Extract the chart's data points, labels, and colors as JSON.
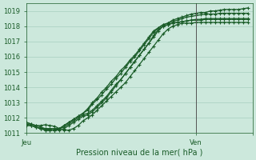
{
  "title": "",
  "xlabel": "Pression niveau de la mer( hPa )",
  "ylabel": "",
  "bg_color": "#cce8dc",
  "grid_color": "#a8cfc0",
  "line_color": "#1a5c28",
  "ylim": [
    1011,
    1019.5
  ],
  "xlim": [
    0,
    48
  ],
  "xtick_positions": [
    0,
    36,
    48
  ],
  "xtick_labels": [
    "Jeu",
    "Ven",
    ""
  ],
  "ytick_positions": [
    1011,
    1012,
    1013,
    1014,
    1015,
    1016,
    1017,
    1018,
    1019
  ],
  "vline_x": 36,
  "series": [
    [
      1011.5,
      1011.5,
      1011.4,
      1011.3,
      1011.2,
      1011.2,
      1011.2,
      1011.3,
      1011.5,
      1011.7,
      1011.9,
      1012.1,
      1012.3,
      1012.6,
      1013.0,
      1013.3,
      1013.7,
      1014.0,
      1014.4,
      1014.7,
      1015.1,
      1015.4,
      1015.8,
      1016.1,
      1016.5,
      1016.9,
      1017.3,
      1017.7,
      1017.9,
      1018.1,
      1018.2,
      1018.4,
      1018.5,
      1018.6,
      1018.7,
      1018.8,
      1018.85,
      1018.9,
      1018.9,
      1019.0,
      1019.0,
      1019.05,
      1019.1,
      1019.1,
      1019.1,
      1019.1,
      1019.15,
      1019.2
    ],
    [
      1011.6,
      1011.5,
      1011.4,
      1011.3,
      1011.2,
      1011.2,
      1011.2,
      1011.3,
      1011.5,
      1011.7,
      1011.9,
      1012.1,
      1012.3,
      1012.5,
      1012.9,
      1013.2,
      1013.5,
      1013.9,
      1014.2,
      1014.6,
      1014.9,
      1015.3,
      1015.7,
      1016.0,
      1016.4,
      1016.8,
      1017.2,
      1017.6,
      1017.9,
      1018.1,
      1018.2,
      1018.3,
      1018.4,
      1018.5,
      1018.6,
      1018.65,
      1018.7,
      1018.75,
      1018.8,
      1018.8,
      1018.8,
      1018.85,
      1018.85,
      1018.85,
      1018.85,
      1018.85,
      1018.85,
      1018.85
    ],
    [
      1011.6,
      1011.5,
      1011.4,
      1011.3,
      1011.3,
      1011.3,
      1011.3,
      1011.3,
      1011.4,
      1011.6,
      1011.8,
      1012.0,
      1012.2,
      1012.3,
      1012.5,
      1012.8,
      1013.1,
      1013.4,
      1013.8,
      1014.2,
      1014.5,
      1014.9,
      1015.3,
      1015.7,
      1016.1,
      1016.5,
      1016.9,
      1017.4,
      1017.8,
      1018.0,
      1018.1,
      1018.2,
      1018.25,
      1018.3,
      1018.35,
      1018.4,
      1018.45,
      1018.45,
      1018.5,
      1018.5,
      1018.5,
      1018.5,
      1018.5,
      1018.5,
      1018.5,
      1018.5,
      1018.5,
      1018.5
    ],
    [
      1011.7,
      1011.6,
      1011.5,
      1011.4,
      1011.3,
      1011.25,
      1011.2,
      1011.2,
      1011.3,
      1011.5,
      1011.7,
      1011.9,
      1012.1,
      1012.2,
      1012.4,
      1012.7,
      1013.0,
      1013.3,
      1013.7,
      1014.1,
      1014.5,
      1014.9,
      1015.3,
      1015.7,
      1016.1,
      1016.5,
      1016.9,
      1017.3,
      1017.7,
      1018.0,
      1018.1,
      1018.2,
      1018.25,
      1018.3,
      1018.35,
      1018.4,
      1018.4,
      1018.4,
      1018.45,
      1018.45,
      1018.45,
      1018.45,
      1018.45,
      1018.45,
      1018.45,
      1018.45,
      1018.45,
      1018.45
    ],
    [
      1011.7,
      1011.6,
      1011.5,
      1011.5,
      1011.55,
      1011.5,
      1011.45,
      1011.3,
      1011.2,
      1011.2,
      1011.3,
      1011.5,
      1011.8,
      1012.0,
      1012.2,
      1012.5,
      1012.8,
      1013.1,
      1013.4,
      1013.7,
      1014.0,
      1014.3,
      1014.7,
      1015.1,
      1015.5,
      1015.9,
      1016.3,
      1016.7,
      1017.1,
      1017.5,
      1017.8,
      1018.0,
      1018.1,
      1018.2,
      1018.2,
      1018.2,
      1018.25,
      1018.25,
      1018.25,
      1018.25,
      1018.25,
      1018.25,
      1018.25,
      1018.25,
      1018.25,
      1018.25,
      1018.25,
      1018.25
    ]
  ],
  "marker": "+",
  "markersize": 3.5,
  "linewidth": 0.9
}
